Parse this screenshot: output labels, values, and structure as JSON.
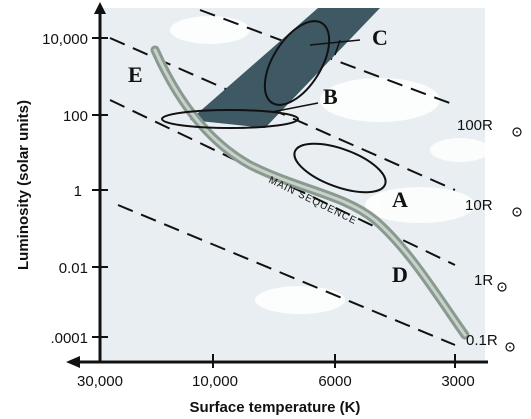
{
  "diagram": {
    "y_axis": {
      "title": "Luminosity (solar units)",
      "ticks": [
        "10,000",
        "100",
        "1",
        "0.01",
        ".0001"
      ]
    },
    "x_axis": {
      "title": "Surface temperature (K)",
      "ticks": [
        "30,000",
        "10,000",
        "6000",
        "3000"
      ]
    },
    "regions": {
      "a": "A",
      "b": "B",
      "c": "C",
      "d": "D",
      "e": "E"
    },
    "main_sequence_label": "MAIN SEQUENCE",
    "radius_lines": [
      {
        "value": "100",
        "unit": "R"
      },
      {
        "value": "10",
        "unit": "R"
      },
      {
        "value": "1",
        "unit": "R"
      },
      {
        "value": "0.1",
        "unit": "R"
      }
    ],
    "colors": {
      "background": "#e8eef1",
      "band_dark": "#3e5864",
      "main_sequence": "#8a9a90",
      "cloud": "#ffffff"
    }
  }
}
